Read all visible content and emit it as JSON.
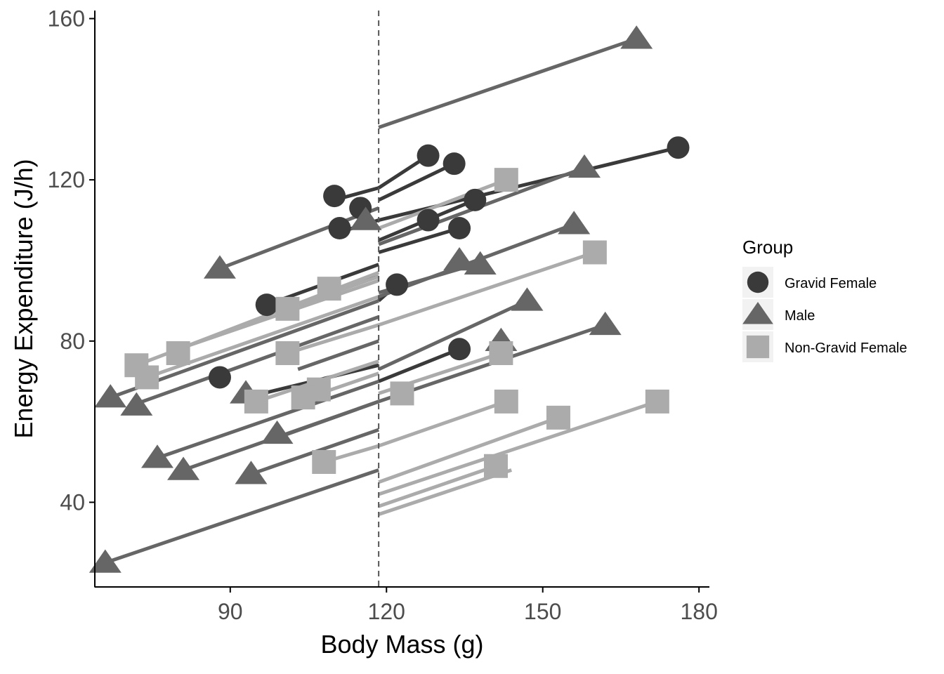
{
  "chart_data": {
    "type": "scatter",
    "title": "",
    "xlabel": "Body Mass (g)",
    "ylabel": "Energy Expenditure (J/h)",
    "xlim": [
      64,
      182
    ],
    "ylim": [
      19,
      162
    ],
    "xticks": [
      90,
      120,
      150,
      180
    ],
    "yticks": [
      40,
      80,
      120,
      160
    ],
    "grid": false,
    "cutoff_line_x": 118.5,
    "legend": {
      "title": "Group",
      "position": "right",
      "entries": [
        {
          "label": "Gravid Female",
          "shape": "circle",
          "color": "#3a3a3a"
        },
        {
          "label": "Male",
          "shape": "triangle",
          "color": "#666666"
        },
        {
          "label": "Non-Gravid Female",
          "shape": "square",
          "color": "#ababab"
        }
      ]
    },
    "colors": {
      "Gravid Female": "#3a3a3a",
      "Male": "#666666",
      "Non-Gravid Female": "#ababab",
      "cutoff_line": "#555555",
      "axis": "#000000"
    },
    "segments": [
      {
        "group": "Male",
        "x1": 118.5,
        "y1": 133,
        "x2": 168,
        "y2": 155
      },
      {
        "group": "Gravid Female",
        "x1": 118.5,
        "y1": 118,
        "x2": 128,
        "y2": 126
      },
      {
        "group": "Gravid Female",
        "x1": 118.5,
        "y1": 115,
        "x2": 133,
        "y2": 124
      },
      {
        "group": "Gravid Female",
        "x1": 118.5,
        "y1": 110,
        "x2": 176,
        "y2": 128
      },
      {
        "group": "Gravid Female",
        "x1": 118.5,
        "y1": 105,
        "x2": 137,
        "y2": 115
      },
      {
        "group": "Gravid Female",
        "x1": 118.5,
        "y1": 102,
        "x2": 134,
        "y2": 108
      },
      {
        "group": "Gravid Female",
        "x1": 118.5,
        "y1": 90,
        "x2": 122,
        "y2": 94
      },
      {
        "group": "Gravid Female",
        "x1": 118.5,
        "y1": 70,
        "x2": 134,
        "y2": 78
      },
      {
        "group": "Male",
        "x1": 118.5,
        "y1": 104,
        "x2": 158,
        "y2": 123
      },
      {
        "group": "Male",
        "x1": 118.5,
        "y1": 92,
        "x2": 137,
        "y2": 99
      },
      {
        "group": "Male",
        "x1": 118.5,
        "y1": 91,
        "x2": 156,
        "y2": 109
      },
      {
        "group": "Male",
        "x1": 118.5,
        "y1": 73,
        "x2": 147,
        "y2": 90
      },
      {
        "group": "Male",
        "x1": 118.5,
        "y1": 65,
        "x2": 162,
        "y2": 84
      },
      {
        "group": "Non-Gravid Female",
        "x1": 118.5,
        "y1": 108,
        "x2": 143,
        "y2": 120
      },
      {
        "group": "Non-Gravid Female",
        "x1": 118.5,
        "y1": 84,
        "x2": 160,
        "y2": 102
      },
      {
        "group": "Non-Gravid Female",
        "x1": 118.5,
        "y1": 67,
        "x2": 142,
        "y2": 77
      },
      {
        "group": "Non-Gravid Female",
        "x1": 118.5,
        "y1": 54,
        "x2": 143,
        "y2": 65
      },
      {
        "group": "Non-Gravid Female",
        "x1": 118.5,
        "y1": 45,
        "x2": 153,
        "y2": 61
      },
      {
        "group": "Non-Gravid Female",
        "x1": 118.5,
        "y1": 42,
        "x2": 172,
        "y2": 65
      },
      {
        "group": "Non-Gravid Female",
        "x1": 118.5,
        "y1": 39,
        "x2": 141,
        "y2": 49
      },
      {
        "group": "Non-Gravid Female",
        "x1": 118.5,
        "y1": 37,
        "x2": 144,
        "y2": 48
      },
      {
        "group": "Male",
        "x1": 88,
        "y1": 98,
        "x2": 118.5,
        "y2": 113
      },
      {
        "group": "Gravid Female",
        "x1": 110,
        "y1": 115,
        "x2": 118.5,
        "y2": 118
      },
      {
        "group": "Gravid Female",
        "x1": 111,
        "y1": 107,
        "x2": 118.5,
        "y2": 110
      },
      {
        "group": "Gravid Female",
        "x1": 97,
        "y1": 89,
        "x2": 118.5,
        "y2": 99
      },
      {
        "group": "Gravid Female",
        "x1": 93,
        "y1": 66,
        "x2": 118.5,
        "y2": 74
      },
      {
        "group": "Gravid Female",
        "x1": 109,
        "y1": 92,
        "x2": 118.5,
        "y2": 96
      },
      {
        "group": "Non-Gravid Female",
        "x1": 72,
        "y1": 74,
        "x2": 118.5,
        "y2": 97
      },
      {
        "group": "Non-Gravid Female",
        "x1": 74,
        "y1": 71,
        "x2": 118.5,
        "y2": 91
      },
      {
        "group": "Non-Gravid Female",
        "x1": 80,
        "y1": 78,
        "x2": 118.5,
        "y2": 95
      },
      {
        "group": "Non-Gravid Female",
        "x1": 101,
        "y1": 88,
        "x2": 118.5,
        "y2": 96
      },
      {
        "group": "Non-Gravid Female",
        "x1": 101,
        "y1": 77,
        "x2": 118.5,
        "y2": 84
      },
      {
        "group": "Non-Gravid Female",
        "x1": 95,
        "y1": 65,
        "x2": 118.5,
        "y2": 75
      },
      {
        "group": "Non-Gravid Female",
        "x1": 105,
        "y1": 66,
        "x2": 118.5,
        "y2": 72
      },
      {
        "group": "Non-Gravid Female",
        "x1": 108,
        "y1": 50,
        "x2": 118.5,
        "y2": 54
      },
      {
        "group": "Male",
        "x1": 67,
        "y1": 66,
        "x2": 118.5,
        "y2": 90
      },
      {
        "group": "Male",
        "x1": 71,
        "y1": 64,
        "x2": 118.5,
        "y2": 86
      },
      {
        "group": "Male",
        "x1": 76,
        "y1": 51,
        "x2": 118.5,
        "y2": 70
      },
      {
        "group": "Male",
        "x1": 81,
        "y1": 48,
        "x2": 118.5,
        "y2": 65
      },
      {
        "group": "Male",
        "x1": 94,
        "y1": 47,
        "x2": 118.5,
        "y2": 58
      },
      {
        "group": "Male",
        "x1": 99,
        "y1": 56,
        "x2": 118.5,
        "y2": 65
      },
      {
        "group": "Male",
        "x1": 66,
        "y1": 25,
        "x2": 118.5,
        "y2": 48
      },
      {
        "group": "Male",
        "x1": 103,
        "y1": 73,
        "x2": 118.5,
        "y2": 80
      }
    ],
    "points": [
      {
        "group": "Male",
        "x": 168,
        "y": 155
      },
      {
        "group": "Gravid Female",
        "x": 176,
        "y": 128
      },
      {
        "group": "Gravid Female",
        "x": 128,
        "y": 126
      },
      {
        "group": "Gravid Female",
        "x": 133,
        "y": 124
      },
      {
        "group": "Male",
        "x": 158,
        "y": 123
      },
      {
        "group": "Non-Gravid Female",
        "x": 143,
        "y": 120
      },
      {
        "group": "Gravid Female",
        "x": 110,
        "y": 116
      },
      {
        "group": "Gravid Female",
        "x": 115,
        "y": 113
      },
      {
        "group": "Gravid Female",
        "x": 137,
        "y": 115
      },
      {
        "group": "Male",
        "x": 116,
        "y": 110
      },
      {
        "group": "Gravid Female",
        "x": 128,
        "y": 110
      },
      {
        "group": "Male",
        "x": 156,
        "y": 109
      },
      {
        "group": "Gravid Female",
        "x": 111,
        "y": 108
      },
      {
        "group": "Gravid Female",
        "x": 134,
        "y": 108
      },
      {
        "group": "Non-Gravid Female",
        "x": 160,
        "y": 102
      },
      {
        "group": "Male",
        "x": 134,
        "y": 100
      },
      {
        "group": "Male",
        "x": 138,
        "y": 99
      },
      {
        "group": "Male",
        "x": 88,
        "y": 98
      },
      {
        "group": "Gravid Female",
        "x": 122,
        "y": 94
      },
      {
        "group": "Non-Gravid Female",
        "x": 109,
        "y": 93
      },
      {
        "group": "Male",
        "x": 147,
        "y": 90
      },
      {
        "group": "Gravid Female",
        "x": 97,
        "y": 89
      },
      {
        "group": "Non-Gravid Female",
        "x": 101,
        "y": 88
      },
      {
        "group": "Male",
        "x": 162,
        "y": 84
      },
      {
        "group": "Male",
        "x": 142,
        "y": 80
      },
      {
        "group": "Gravid Female",
        "x": 134,
        "y": 78
      },
      {
        "group": "Non-Gravid Female",
        "x": 80,
        "y": 77
      },
      {
        "group": "Non-Gravid Female",
        "x": 142,
        "y": 77
      },
      {
        "group": "Non-Gravid Female",
        "x": 101,
        "y": 77
      },
      {
        "group": "Non-Gravid Female",
        "x": 72,
        "y": 74
      },
      {
        "group": "Gravid Female",
        "x": 88,
        "y": 71
      },
      {
        "group": "Non-Gravid Female",
        "x": 74,
        "y": 71
      },
      {
        "group": "Non-Gravid Female",
        "x": 107,
        "y": 68
      },
      {
        "group": "Non-Gravid Female",
        "x": 123,
        "y": 67
      },
      {
        "group": "Male",
        "x": 93,
        "y": 67
      },
      {
        "group": "Male",
        "x": 67,
        "y": 66
      },
      {
        "group": "Non-Gravid Female",
        "x": 104,
        "y": 66
      },
      {
        "group": "Non-Gravid Female",
        "x": 143,
        "y": 65
      },
      {
        "group": "Non-Gravid Female",
        "x": 172,
        "y": 65
      },
      {
        "group": "Non-Gravid Female",
        "x": 95,
        "y": 65
      },
      {
        "group": "Male",
        "x": 72,
        "y": 64
      },
      {
        "group": "Non-Gravid Female",
        "x": 153,
        "y": 61
      },
      {
        "group": "Male",
        "x": 99,
        "y": 57
      },
      {
        "group": "Male",
        "x": 76,
        "y": 51
      },
      {
        "group": "Non-Gravid Female",
        "x": 108,
        "y": 50
      },
      {
        "group": "Non-Gravid Female",
        "x": 141,
        "y": 49
      },
      {
        "group": "Male",
        "x": 81,
        "y": 48
      },
      {
        "group": "Male",
        "x": 94,
        "y": 47
      },
      {
        "group": "Male",
        "x": 66,
        "y": 25
      }
    ]
  }
}
